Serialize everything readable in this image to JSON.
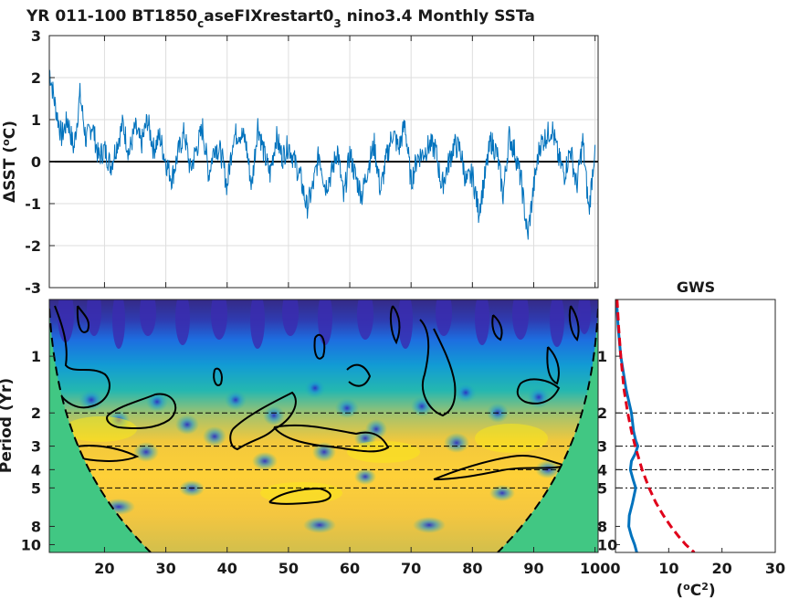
{
  "chart_data": [
    {
      "type": "line",
      "title_prefix": "YR 011-100 BT1850",
      "title_sub1": "c",
      "title_mid": "aseFIXrestart0",
      "title_sub2": "3",
      "title_suffix": " nino3.4 Monthly SSTa",
      "ylabel_prefix": "ΔSST (",
      "ylabel_sup": "o",
      "ylabel_suffix": "C)",
      "xlim": [
        11,
        100.5
      ],
      "ylim": [
        -3,
        3
      ],
      "yticks": [
        "-3",
        "-2",
        "-1",
        "0",
        "1",
        "2",
        "3"
      ],
      "xticks": [
        20,
        30,
        40,
        50,
        60,
        70,
        80,
        90,
        100
      ],
      "grid": true,
      "series": [
        {
          "color": "#0072bd",
          "x": [
            11,
            12,
            13,
            14,
            15,
            16,
            17,
            18,
            19,
            20,
            21,
            22,
            23,
            24,
            25,
            26,
            27,
            28,
            29,
            30,
            31,
            32,
            33,
            34,
            35,
            36,
            37,
            38,
            39,
            40,
            41,
            42,
            43,
            44,
            45,
            46,
            47,
            48,
            49,
            50,
            51,
            52,
            53,
            54,
            55,
            56,
            57,
            58,
            59,
            60,
            61,
            62,
            63,
            64,
            65,
            66,
            67,
            68,
            69,
            70,
            71,
            72,
            73,
            74,
            75,
            76,
            77,
            78,
            79,
            80,
            81,
            82,
            83,
            84,
            85,
            86,
            87,
            88,
            89,
            90,
            91,
            92,
            93,
            94,
            95,
            96,
            97,
            98,
            99,
            100
          ],
          "values": [
            2.2,
            1.3,
            0.6,
            1.0,
            0.3,
            1.6,
            0.5,
            0.9,
            0.1,
            0.3,
            -0.1,
            0.4,
            0.9,
            0.2,
            0.8,
            0.4,
            1.0,
            0.3,
            0.6,
            0.0,
            -0.4,
            0.2,
            0.7,
            -0.2,
            0.3,
            0.8,
            -0.3,
            0.4,
            0.2,
            -0.6,
            0.6,
            0.7,
            0.5,
            -0.6,
            0.9,
            0.2,
            -0.3,
            0.6,
            0.1,
            0.4,
            0.0,
            -0.4,
            -1.1,
            -0.6,
            0.2,
            -0.6,
            -0.3,
            0.3,
            -0.9,
            0.2,
            -0.4,
            -0.8,
            -0.1,
            0.4,
            -0.7,
            0.1,
            0.7,
            0.3,
            0.9,
            -0.5,
            0.1,
            0.2,
            0.4,
            0.3,
            -0.6,
            -0.1,
            0.4,
            0.3,
            -0.5,
            -0.3,
            -1.2,
            -0.4,
            0.5,
            0.2,
            -0.8,
            0.6,
            0.2,
            -0.5,
            -1.8,
            -0.6,
            0.4,
            0.6,
            0.8,
            0.1,
            -0.3,
            0.3,
            -0.6,
            0.5,
            -1.2,
            0.4
          ]
        }
      ]
    },
    {
      "type": "heatmap",
      "ylabel": "Period (Yr)",
      "yticks": [
        "1",
        "2",
        "3",
        "4",
        "5",
        "8",
        "10"
      ],
      "ytick_values": [
        1,
        2,
        3,
        4,
        5,
        8,
        10
      ],
      "xticks": [
        20,
        30,
        40,
        50,
        60,
        70,
        80,
        90,
        100
      ],
      "xlim": [
        11,
        100.5
      ],
      "ylim": [
        0.5,
        11
      ],
      "reference_periods": [
        2,
        3,
        4,
        5
      ],
      "colormap": [
        "#352a87",
        "#0f5cdd",
        "#1481d6",
        "#06a4ca",
        "#2eb7a4",
        "#87bf77",
        "#d1bb59",
        "#fec832",
        "#f9fb0e"
      ],
      "cone_color": "#41c783"
    },
    {
      "type": "line",
      "title": "GWS",
      "xlabel_prefix": "(",
      "xlabel_sup1": "o",
      "xlabel_mid": "C",
      "xlabel_sup2": "2",
      "xlabel_suffix": ")",
      "xticks": [
        "0",
        "10",
        "20",
        "30"
      ],
      "xlim": [
        0,
        30
      ],
      "yticks": [
        "1",
        "2",
        "3",
        "4",
        "5",
        "8",
        "10"
      ],
      "series": [
        {
          "color": "#0072bd",
          "style": "solid",
          "period": [
            0.5,
            0.7,
            1.0,
            1.5,
            2.0,
            2.5,
            2.8,
            3.0,
            3.3,
            3.6,
            4.0,
            4.5,
            5.0,
            6.0,
            7.0,
            8.0,
            9.0,
            10.0,
            11.0
          ],
          "power": [
            0.2,
            0.5,
            1.0,
            2.0,
            3.0,
            3.4,
            3.8,
            4.2,
            3.7,
            3.0,
            2.8,
            3.3,
            3.8,
            3.2,
            2.6,
            2.5,
            3.0,
            3.6,
            4.0
          ]
        },
        {
          "color": "#e0001a",
          "style": "dashed",
          "period": [
            0.5,
            0.7,
            1.0,
            1.5,
            2.0,
            2.5,
            3.0,
            4.0,
            5.0,
            6.0,
            7.0,
            8.0,
            9.0,
            10.0,
            11.0
          ],
          "power": [
            0.3,
            0.6,
            1.0,
            1.6,
            2.3,
            3.0,
            3.7,
            5.0,
            6.3,
            7.6,
            9.0,
            10.4,
            11.8,
            13.2,
            14.8
          ]
        }
      ]
    }
  ]
}
